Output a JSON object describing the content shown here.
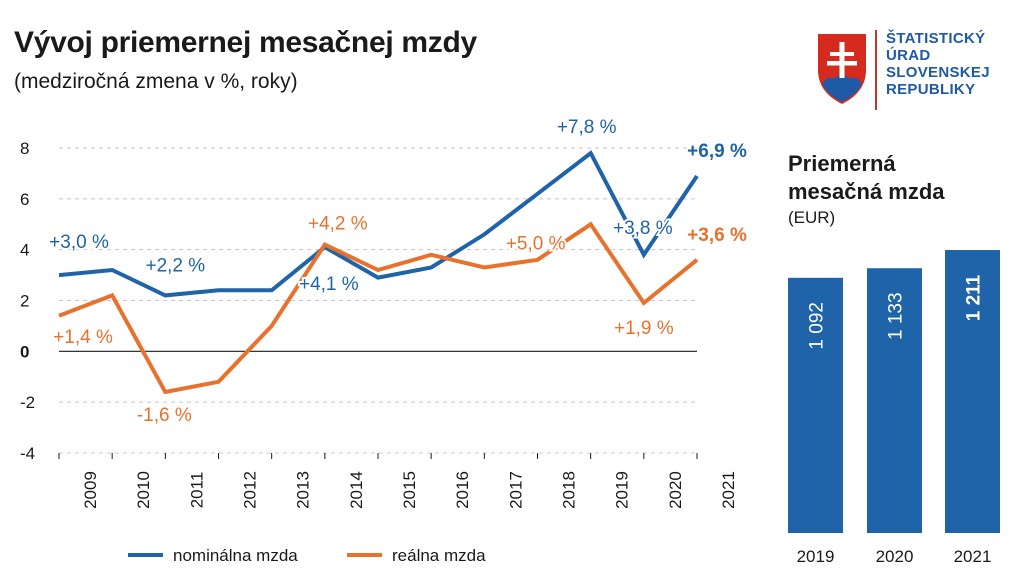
{
  "header": {
    "title": "Vývoj priemernej mesačnej mzdy",
    "subtitle": "(medziročná zmena v %, roky)"
  },
  "logo": {
    "lines": [
      "ŠTATISTICKÝ",
      "ÚRAD",
      "SLOVENSKEJ",
      "REPUBLIKY"
    ],
    "shield_red": "#d52b1e",
    "shield_blue": "#1f5aa6"
  },
  "chart_data": [
    {
      "type": "line",
      "title": "Vývoj priemernej mesačnej mzdy",
      "subtitle": "(medziročná zmena v %, roky)",
      "categories": [
        "2009",
        "2010",
        "2011",
        "2012",
        "2013",
        "2014",
        "2015",
        "2016",
        "2017",
        "2018",
        "2019",
        "2020",
        "2021"
      ],
      "ylim": [
        -4,
        8
      ],
      "yticks": [
        "-4",
        "-2",
        "0",
        "2",
        "4",
        "6",
        "8"
      ],
      "series": [
        {
          "name": "nominálna mzda",
          "color": "#1f63a8",
          "values": [
            3.0,
            3.2,
            2.2,
            2.4,
            2.4,
            4.1,
            2.9,
            3.3,
            4.6,
            6.2,
            7.8,
            3.8,
            6.9
          ]
        },
        {
          "name": "reálna mzda",
          "color": "#e8712e",
          "values": [
            1.4,
            2.2,
            -1.6,
            -1.2,
            1.0,
            4.2,
            3.2,
            3.8,
            3.3,
            3.6,
            5.0,
            1.9,
            3.6
          ]
        }
      ],
      "annotations": [
        {
          "series": 0,
          "index": 0,
          "text": "+3,0 %",
          "bold": false
        },
        {
          "series": 0,
          "index": 2,
          "text": "+2,2 %",
          "bold": false
        },
        {
          "series": 0,
          "index": 5,
          "text": "+4,1 %",
          "bold": false
        },
        {
          "series": 0,
          "index": 10,
          "text": "+7,8 %",
          "bold": false
        },
        {
          "series": 0,
          "index": 11,
          "text": "+3,8 %",
          "bold": false
        },
        {
          "series": 0,
          "index": 12,
          "text": "+6,9 %",
          "bold": true
        },
        {
          "series": 1,
          "index": 0,
          "text": "+1,4 %",
          "bold": false
        },
        {
          "series": 1,
          "index": 2,
          "text": "-1,6 %",
          "bold": false
        },
        {
          "series": 1,
          "index": 5,
          "text": "+4,2 %",
          "bold": false
        },
        {
          "series": 1,
          "index": 10,
          "text": "+5,0 %",
          "bold": false
        },
        {
          "series": 1,
          "index": 11,
          "text": "+1,9 %",
          "bold": false
        },
        {
          "series": 1,
          "index": 12,
          "text": "+3,6 %",
          "bold": true
        }
      ],
      "legend": "bottom"
    },
    {
      "type": "bar",
      "title": "Priemerná mesačná mzda",
      "unit": "(EUR)",
      "categories": [
        "2019",
        "2020",
        "2021"
      ],
      "values": [
        1092,
        1133,
        1211
      ],
      "labels": [
        "1 092",
        "1 133",
        "1 211"
      ],
      "color": "#1f63a8"
    }
  ]
}
